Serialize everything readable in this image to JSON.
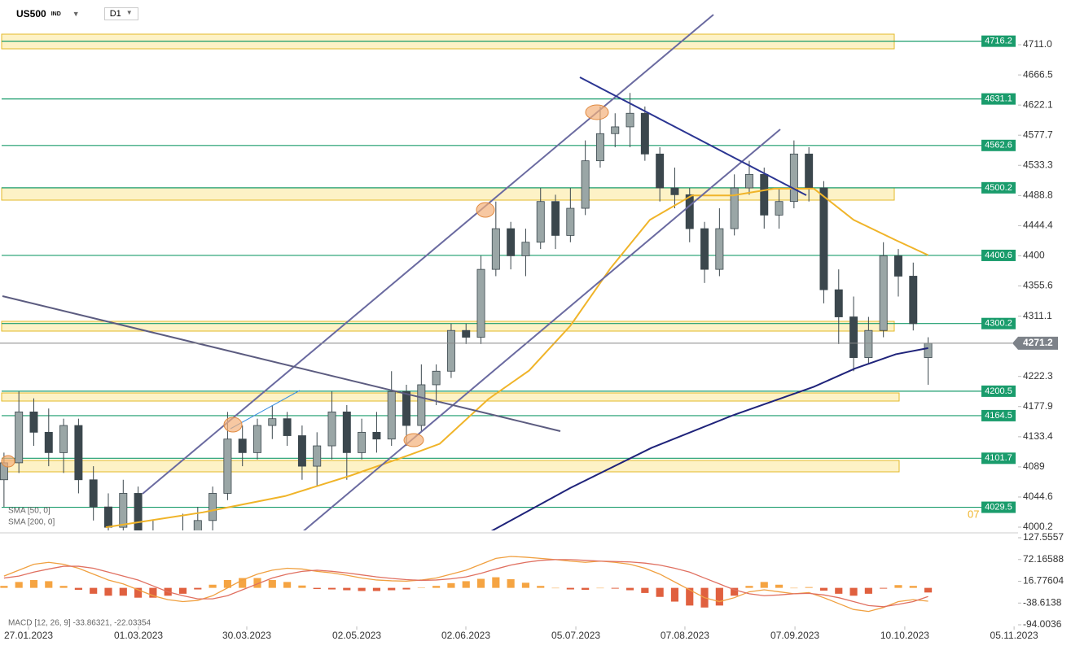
{
  "header": {
    "symbol": "US500",
    "market": "IND",
    "timeframe": "D1"
  },
  "chart_data": {
    "type": "candlestick",
    "candles": {
      "x": [
        0,
        3,
        6,
        9,
        12,
        15,
        18,
        21,
        24,
        27,
        30,
        33,
        36,
        39,
        42,
        45,
        48,
        51,
        54,
        57,
        60,
        63,
        66,
        69,
        72,
        75,
        78,
        81,
        84,
        87,
        90,
        93,
        96,
        99,
        102,
        105,
        108,
        111,
        114,
        117,
        120,
        123,
        126,
        129,
        132,
        135,
        138,
        141,
        144,
        147,
        150,
        153,
        156,
        159,
        162,
        165,
        168,
        171,
        174,
        177,
        180,
        183,
        186
      ],
      "open": [
        4070,
        4095,
        4170,
        4140,
        4110,
        4150,
        4070,
        4030,
        4000,
        4050,
        3980,
        3950,
        3970,
        3990,
        4010,
        4050,
        4130,
        4110,
        4150,
        4160,
        4135,
        4090,
        4120,
        4170,
        4110,
        4140,
        4130,
        4200,
        4150,
        4210,
        4230,
        4290,
        4280,
        4380,
        4440,
        4400,
        4420,
        4480,
        4430,
        4470,
        4540,
        4580,
        4590,
        4610,
        4550,
        4500,
        4490,
        4440,
        4380,
        4440,
        4500,
        4520,
        4460,
        4480,
        4550,
        4500,
        4350,
        4310,
        4250,
        4290,
        4400,
        4370,
        4250
      ],
      "high": [
        4110,
        4200,
        4190,
        4175,
        4160,
        4160,
        4090,
        4050,
        4070,
        4060,
        4010,
        3990,
        4020,
        4030,
        4060,
        4170,
        4150,
        4160,
        4180,
        4170,
        4150,
        4140,
        4200,
        4180,
        4160,
        4170,
        4230,
        4210,
        4240,
        4240,
        4300,
        4300,
        4400,
        4480,
        4450,
        4440,
        4500,
        4490,
        4500,
        4570,
        4620,
        4610,
        4640,
        4620,
        4560,
        4530,
        4500,
        4450,
        4470,
        4520,
        4540,
        4530,
        4500,
        4570,
        4560,
        4510,
        4380,
        4340,
        4310,
        4420,
        4410,
        4390,
        4280
      ],
      "low": [
        4030,
        4080,
        4120,
        4090,
        4080,
        4050,
        4010,
        3980,
        3990,
        3960,
        3930,
        3900,
        3950,
        3960,
        3990,
        4040,
        4090,
        4100,
        4130,
        4120,
        4070,
        4060,
        4100,
        4070,
        4100,
        4110,
        4120,
        4120,
        4140,
        4180,
        4220,
        4270,
        4270,
        4370,
        4380,
        4370,
        4410,
        4410,
        4420,
        4460,
        4530,
        4560,
        4560,
        4540,
        4480,
        4470,
        4420,
        4360,
        4370,
        4430,
        4490,
        4440,
        4440,
        4470,
        4480,
        4330,
        4270,
        4230,
        4240,
        4280,
        4340,
        4290,
        4210
      ],
      "close": [
        4095,
        4170,
        4140,
        4110,
        4150,
        4070,
        4030,
        4000,
        4050,
        3980,
        3950,
        3970,
        3990,
        4010,
        4050,
        4130,
        4110,
        4150,
        4160,
        4135,
        4090,
        4120,
        4170,
        4110,
        4140,
        4130,
        4200,
        4150,
        4210,
        4230,
        4290,
        4280,
        4380,
        4440,
        4400,
        4420,
        4480,
        4430,
        4470,
        4540,
        4580,
        4590,
        4610,
        4550,
        4500,
        4490,
        4440,
        4380,
        4440,
        4500,
        4520,
        4460,
        4480,
        4550,
        4500,
        4350,
        4310,
        4250,
        4290,
        4400,
        4370,
        4300,
        4271.2
      ],
      "up_color": "#9aa6a6",
      "down_color": "#3b474d"
    },
    "xlim": [
      -0.8,
      204.1
    ],
    "ylim": [
      3991.8,
      4776.9
    ],
    "xticks": [
      {
        "value": 4.94,
        "label": "27.01.2023"
      },
      {
        "value": 27.07,
        "label": "01.03.2023"
      },
      {
        "value": 48.87,
        "label": "30.03.2023"
      },
      {
        "value": 71.0,
        "label": "02.05.2023"
      },
      {
        "value": 92.96,
        "label": "02.06.2023"
      },
      {
        "value": 115.1,
        "label": "05.07.2023"
      },
      {
        "value": 137.05,
        "label": "07.08.2023"
      },
      {
        "value": 159.2,
        "label": "07.09.2023"
      },
      {
        "value": 181.3,
        "label": "10.10.2023"
      },
      {
        "value": 203.3,
        "label": "05.11.2023"
      }
    ],
    "yticks": [
      {
        "value": 4711,
        "label": "4711.0"
      },
      4666.5,
      4622.1,
      4577.7,
      4533.3,
      4488.8,
      4444.4,
      4400.0,
      4355.6,
      4311.1,
      4222.3,
      4177.9,
      4133.4,
      4089.0,
      4044.6,
      4000.2
    ],
    "series": [
      {
        "name": "SMA [50, 0]",
        "color": "#f0b429",
        "x": [
          20.5,
          40,
          56.6,
          69.7,
          81,
          87.7,
          97.5,
          105.7,
          114,
          122,
          130,
          138.5,
          146.7,
          155,
          163,
          171,
          179.5,
          186
        ],
        "values": [
          4000,
          4022,
          4046,
          4076,
          4105,
          4123,
          4189,
          4231,
          4297,
          4381,
          4453,
          4489,
          4489,
          4499,
          4499,
          4453,
          4423,
          4401
        ]
      },
      {
        "name": "SMA [200, 0]",
        "color": "#1f237a",
        "x": [
          97.5,
          114,
          130.3,
          146.7,
          163,
          171.3,
          179.5,
          186
        ],
        "values": [
          3992,
          4058,
          4117,
          4165,
          4207,
          4234,
          4255,
          4264
        ]
      }
    ],
    "levels": [
      4716.2,
      4631.1,
      4562.6,
      4500.2,
      4400.6,
      4300.2,
      4200.5,
      4164.5,
      4101.7,
      4029.5
    ],
    "level_color": "#1a9c6c",
    "annotation": "07",
    "macd": {
      "title": "MACD [12, 26, 9] -33.86321, -22.03354",
      "ylim": [
        -98.1,
        140.0
      ],
      "yticks": [
        127.5557,
        72.16588,
        16.77604,
        -38.6138,
        -94.0036
      ],
      "macd": [
        30,
        45,
        60,
        65,
        60,
        50,
        35,
        20,
        10,
        -5,
        -20,
        -30,
        -35,
        -32,
        -20,
        0,
        20,
        35,
        45,
        50,
        48,
        42,
        38,
        32,
        25,
        20,
        18,
        17,
        20,
        25,
        35,
        45,
        60,
        75,
        80,
        78,
        75,
        72,
        68,
        65,
        68,
        65,
        60,
        50,
        35,
        15,
        -5,
        -25,
        -35,
        -25,
        -10,
        -5,
        -10,
        -15,
        -12,
        -25,
        -40,
        -55,
        -60,
        -50,
        -35,
        -30,
        -33.86321
      ],
      "signal": [
        25,
        30,
        40,
        48,
        55,
        55,
        50,
        40,
        30,
        20,
        5,
        -10,
        -20,
        -28,
        -28,
        -20,
        -5,
        10,
        25,
        35,
        42,
        45,
        42,
        38,
        33,
        28,
        24,
        21,
        19,
        20,
        23,
        28,
        37,
        48,
        58,
        65,
        70,
        72,
        72,
        70,
        68,
        67,
        66,
        63,
        58,
        50,
        40,
        25,
        10,
        -5,
        -15,
        -20,
        -18,
        -15,
        -14,
        -18,
        -25,
        -35,
        -45,
        -48,
        -42,
        -35,
        -22.03354
      ],
      "histogram": [
        5,
        15,
        20,
        17,
        5,
        -5,
        -15,
        -20,
        -20,
        -25,
        -25,
        -20,
        -15,
        -4,
        8,
        20,
        25,
        25,
        20,
        15,
        6,
        -3,
        -4,
        -6,
        -8,
        -8,
        -6,
        -4,
        1,
        5,
        12,
        17,
        23,
        27,
        22,
        13,
        5,
        0,
        -4,
        -5,
        0,
        -2,
        -6,
        -13,
        -23,
        -35,
        -45,
        -50,
        -45,
        -20,
        5,
        15,
        8,
        0,
        2,
        -7,
        -15,
        -20,
        -15,
        -2,
        7,
        5,
        -11.8
      ],
      "macd_color": "#f0a040",
      "signal_color": "#e07060",
      "pos_color": "#f5a442",
      "neg_color": "#e0603f"
    }
  }
}
